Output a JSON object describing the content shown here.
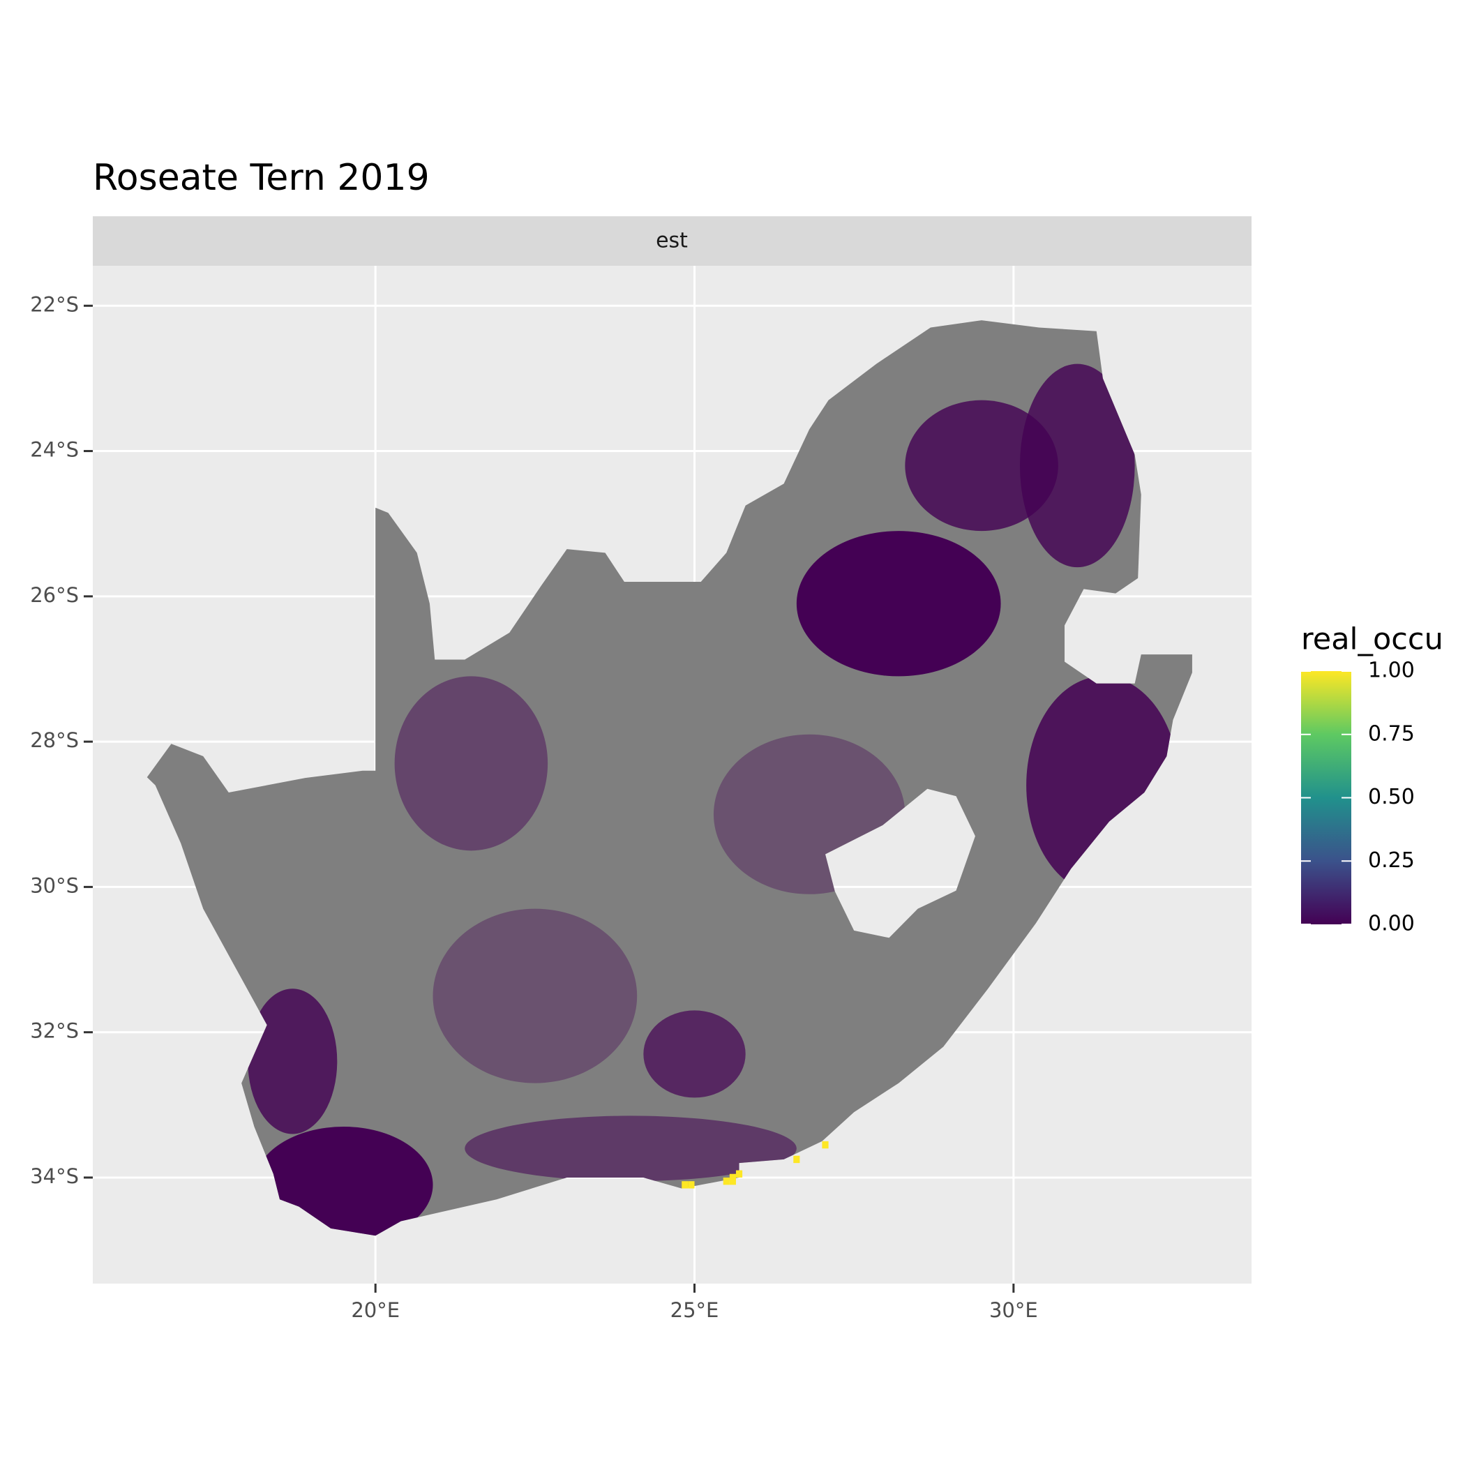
{
  "chart_data": {
    "type": "raster_map",
    "title": "Roseate Tern 2019",
    "facet": "est",
    "xlim": [
      15.57,
      33.73
    ],
    "ylim": [
      -35.46,
      -21.45
    ],
    "xticks": [
      {
        "value": 20,
        "label": "20°E"
      },
      {
        "value": 25,
        "label": "25°E"
      },
      {
        "value": 30,
        "label": "30°E"
      }
    ],
    "yticks": [
      {
        "value": -22,
        "label": "22°S"
      },
      {
        "value": -24,
        "label": "24°S"
      },
      {
        "value": -26,
        "label": "26°S"
      },
      {
        "value": -28,
        "label": "28°S"
      },
      {
        "value": -30,
        "label": "30°S"
      },
      {
        "value": -32,
        "label": "32°S"
      },
      {
        "value": -34,
        "label": "34°S"
      }
    ],
    "grid": true,
    "cells": {
      "x": [
        25.5,
        25.6,
        25.7,
        25.6,
        24.85,
        24.95,
        26.6,
        27.05
      ],
      "y": [
        -34.05,
        -34.05,
        -33.95,
        -34.0,
        -34.1,
        -34.1,
        -33.75,
        -33.55
      ],
      "values": [
        1,
        1,
        1,
        1,
        1,
        1,
        1,
        1
      ]
    },
    "legend": {
      "title": "real_occu",
      "limits": [
        0,
        1
      ],
      "colors": [
        "#440154",
        "#3b528b",
        "#21918c",
        "#5ec962",
        "#fde725"
      ],
      "ticks": [
        {
          "value": 0,
          "label": "0.00"
        },
        {
          "value": 0.25,
          "label": "0.25"
        },
        {
          "value": 0.5,
          "label": "0.50"
        },
        {
          "value": 0.75,
          "label": "0.75"
        },
        {
          "value": 1,
          "label": "1.00"
        }
      ]
    }
  }
}
